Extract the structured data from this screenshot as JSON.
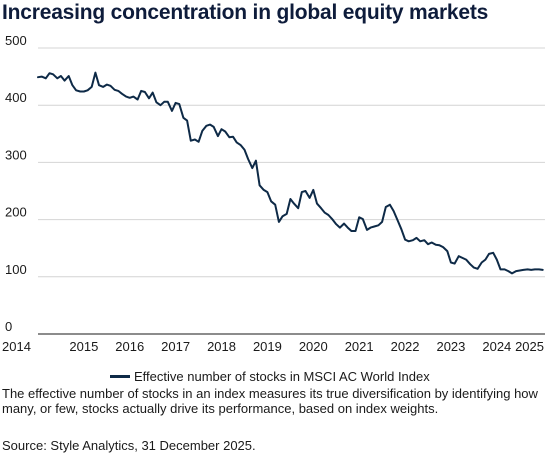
{
  "chart_data": {
    "type": "line",
    "title": "Increasing concentration in global equity markets",
    "xlabel": "",
    "ylabel": "",
    "xlim": [
      2014,
      2025.05
    ],
    "ylim": [
      0,
      500
    ],
    "x_ticks": [
      "2014",
      "2015",
      "2016",
      "2017",
      "2018",
      "2019",
      "2020",
      "2021",
      "2022",
      "2023",
      "2024",
      "2025"
    ],
    "y_ticks": [
      "0",
      "100",
      "200",
      "300",
      "400",
      "500"
    ],
    "grid": "horizontal",
    "legend_position": "bottom",
    "colors": {
      "series": "#0e2a47",
      "grid": "#d4d4d4",
      "title": "#0e1c3b"
    },
    "series": [
      {
        "name": "Effective number of stocks in MSCI AC World Index",
        "x": [
          2014.0,
          2014.08,
          2014.17,
          2014.25,
          2014.33,
          2014.42,
          2014.5,
          2014.58,
          2014.67,
          2014.75,
          2014.83,
          2014.92,
          2015.0,
          2015.08,
          2015.17,
          2015.25,
          2015.33,
          2015.42,
          2015.5,
          2015.58,
          2015.67,
          2015.75,
          2015.83,
          2015.92,
          2016.0,
          2016.08,
          2016.17,
          2016.25,
          2016.33,
          2016.42,
          2016.5,
          2016.58,
          2016.67,
          2016.75,
          2016.83,
          2016.92,
          2017.0,
          2017.08,
          2017.17,
          2017.25,
          2017.33,
          2017.42,
          2017.5,
          2017.58,
          2017.67,
          2017.75,
          2017.83,
          2017.92,
          2018.0,
          2018.08,
          2018.17,
          2018.25,
          2018.33,
          2018.42,
          2018.5,
          2018.58,
          2018.67,
          2018.75,
          2018.83,
          2018.92,
          2019.0,
          2019.08,
          2019.17,
          2019.25,
          2019.33,
          2019.42,
          2019.5,
          2019.58,
          2019.67,
          2019.75,
          2019.83,
          2019.92,
          2020.0,
          2020.08,
          2020.17,
          2020.25,
          2020.33,
          2020.42,
          2020.5,
          2020.58,
          2020.67,
          2020.75,
          2020.83,
          2020.92,
          2021.0,
          2021.08,
          2021.17,
          2021.25,
          2021.33,
          2021.42,
          2021.5,
          2021.58,
          2021.67,
          2021.75,
          2021.83,
          2021.92,
          2022.0,
          2022.08,
          2022.17,
          2022.25,
          2022.33,
          2022.42,
          2022.5,
          2022.58,
          2022.67,
          2022.75,
          2022.83,
          2022.92,
          2023.0,
          2023.08,
          2023.17,
          2023.25,
          2023.33,
          2023.42,
          2023.5,
          2023.58,
          2023.67,
          2023.75,
          2023.83,
          2023.92,
          2024.0,
          2024.08,
          2024.17,
          2024.25,
          2024.33,
          2024.42,
          2024.5,
          2024.58,
          2024.67,
          2024.75,
          2024.83,
          2024.92,
          2025.0
        ],
        "y": [
          449,
          450,
          447,
          456,
          454,
          447,
          451,
          443,
          451,
          435,
          426,
          424,
          424,
          426,
          432,
          457,
          435,
          432,
          436,
          434,
          427,
          425,
          420,
          415,
          413,
          415,
          410,
          425,
          423,
          412,
          422,
          405,
          400,
          406,
          406,
          390,
          404,
          402,
          378,
          373,
          338,
          340,
          336,
          355,
          364,
          366,
          362,
          346,
          358,
          354,
          344,
          345,
          335,
          330,
          322,
          306,
          290,
          303,
          260,
          252,
          248,
          232,
          226,
          196,
          206,
          210,
          236,
          228,
          220,
          248,
          250,
          238,
          252,
          228,
          220,
          212,
          208,
          200,
          192,
          186,
          193,
          186,
          180,
          180,
          204,
          201,
          182,
          186,
          188,
          190,
          196,
          222,
          226,
          215,
          200,
          183,
          165,
          162,
          164,
          168,
          162,
          164,
          157,
          160,
          156,
          155,
          152,
          145,
          125,
          123,
          136,
          133,
          130,
          122,
          116,
          114,
          125,
          130,
          140,
          142,
          130,
          113,
          113,
          110,
          106,
          110,
          111,
          112,
          113,
          112,
          113,
          113,
          112
        ]
      }
    ]
  },
  "legend": {
    "label": "Effective number of stocks in MSCI AC World Index"
  },
  "footnote": "The effective number of stocks in an index measures its true diversification by identifying how many, or few, stocks actually drive its performance, based on index weights.",
  "source": "Source: Style Analytics, 31 December 2025."
}
